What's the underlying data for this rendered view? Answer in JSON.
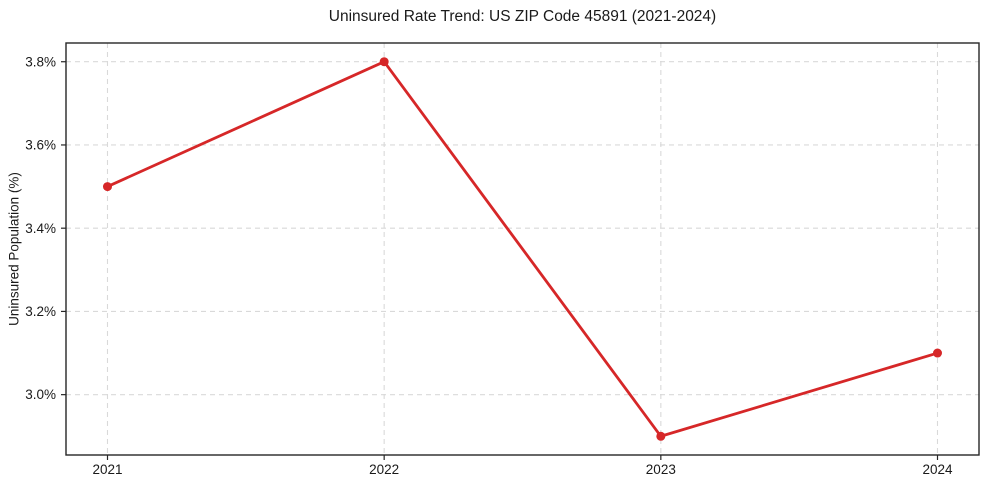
{
  "chart_data": {
    "type": "line",
    "title": "Uninsured Rate Trend: US ZIP Code 45891 (2021-2024)",
    "xlabel": "",
    "ylabel": "Uninsured Population (%)",
    "categories": [
      2021,
      2022,
      2023,
      2024
    ],
    "xtick_labels": [
      "2021",
      "2022",
      "2023",
      "2024"
    ],
    "series": [
      {
        "name": "Uninsured Population (%)",
        "values": [
          3.5,
          3.8,
          2.9,
          3.1
        ],
        "color": "#d62728"
      }
    ],
    "yticks": [
      3.0,
      3.2,
      3.4,
      3.6,
      3.8
    ],
    "ytick_labels": [
      "3.0%",
      "3.2%",
      "3.4%",
      "3.6%",
      "3.8%"
    ],
    "ylim": [
      2.855,
      3.845
    ],
    "xlim": [
      2020.85,
      2024.15
    ],
    "grid": true,
    "grid_style": "dashed",
    "legend_position": "none",
    "marker": "circle"
  },
  "colors": {
    "line": "#d62728",
    "grid": "#d9d9d9",
    "axis": "#262626",
    "text": "#1a1a1a",
    "background": "#ffffff"
  }
}
